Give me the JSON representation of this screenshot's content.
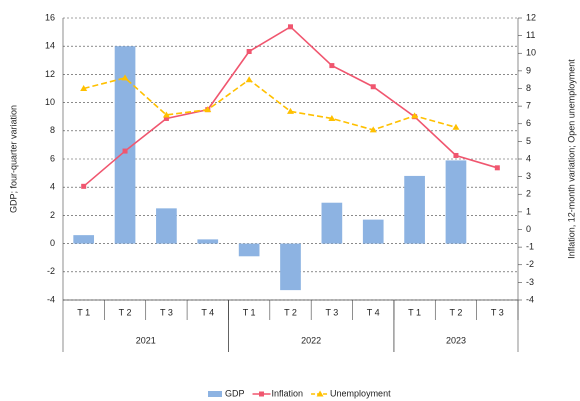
{
  "chart_data": {
    "type": "bar-line",
    "y_label": "GDP; four-quarter variation",
    "y2_label": "Inflation, 12-month variation; Open unemployment",
    "groups": [
      {
        "name": "2021",
        "categories": [
          "T 1",
          "T 2",
          "T 3",
          "T 4"
        ]
      },
      {
        "name": "2022",
        "categories": [
          "T 1",
          "T 2",
          "T 3",
          "T 4"
        ]
      },
      {
        "name": "2023",
        "categories": [
          "T 1",
          "T 2",
          "T 3"
        ]
      }
    ],
    "series": [
      {
        "name": "GDP",
        "type": "bar",
        "color": "#8db3e2",
        "values": [
          0.6,
          14,
          2.5,
          0.3,
          -0.9,
          -3.3,
          2.9,
          1.7,
          4.8,
          5.9,
          null
        ]
      },
      {
        "name": "Inflation",
        "type": "line",
        "axis": "y2",
        "color": "#f0566f",
        "marker": "square",
        "dashed": false,
        "values": [
          2.45,
          4.45,
          6.3,
          6.8,
          10.1,
          11.5,
          9.3,
          8.1,
          6.4,
          4.2,
          3.5
        ]
      },
      {
        "name": "Unemployment",
        "type": "line",
        "axis": "y2",
        "color": "#ffc000",
        "marker": "triangle",
        "dashed": true,
        "values": [
          8.0,
          8.6,
          6.5,
          6.8,
          8.5,
          6.7,
          6.3,
          5.65,
          6.45,
          5.8,
          null
        ]
      }
    ],
    "ylim": [
      -4,
      16
    ],
    "yticks": [
      -4,
      -2,
      0,
      2,
      4,
      6,
      8,
      10,
      12,
      14,
      16
    ],
    "y2lim": [
      -4,
      12
    ],
    "y2ticks": [
      -4,
      -3,
      -2,
      -1,
      0,
      1,
      2,
      3,
      4,
      5,
      6,
      7,
      8,
      9,
      10,
      11,
      12
    ],
    "grid": true,
    "legend": "bottom"
  }
}
